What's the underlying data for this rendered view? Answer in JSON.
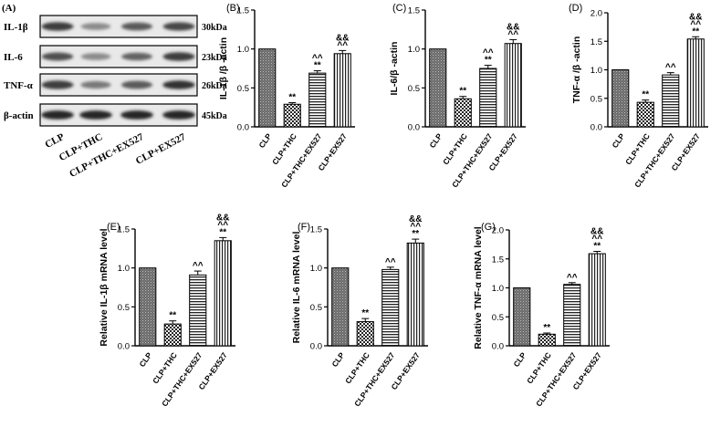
{
  "panel_labels": {
    "a": "(A)",
    "b": "(B)",
    "c": "(C)",
    "d": "(D)",
    "e": "(E)",
    "f": "(F)",
    "g": "(G)"
  },
  "blot": {
    "rows": [
      {
        "protein": "IL-1β",
        "size": "30kDa"
      },
      {
        "protein": "IL-6",
        "size": "23kDa"
      },
      {
        "protein": "TNF-α",
        "size": "26kDa"
      },
      {
        "protein": "β-actin",
        "size": "45kDa"
      }
    ],
    "lanes": [
      "CLP",
      "CLP+THC",
      "CLP+THC+EX527",
      "CLP+EX527"
    ],
    "intensities": [
      [
        0.85,
        0.45,
        0.7,
        0.8
      ],
      [
        0.75,
        0.45,
        0.65,
        0.85
      ],
      [
        0.85,
        0.55,
        0.7,
        0.9
      ],
      [
        0.95,
        0.95,
        0.95,
        0.95
      ]
    ]
  },
  "chart_data": [
    {
      "panel": "(B)",
      "type": "bar",
      "title": "",
      "xlabel": "",
      "ylabel": "IL-1β /β -actin",
      "categories": [
        "CLP",
        "CLP+THC",
        "CLP+THC+EX527",
        "CLP+EX527"
      ],
      "values": [
        1.0,
        0.29,
        0.69,
        0.94
      ],
      "errors": [
        0,
        0.02,
        0.03,
        0.04
      ],
      "annotations": [
        [],
        [
          "**"
        ],
        [
          "**",
          "^^"
        ],
        [
          "^^",
          "&&"
        ]
      ],
      "ylim": [
        0,
        1.5
      ],
      "yticks": [
        "0.0",
        "0.5",
        "1.0",
        "1.5"
      ]
    },
    {
      "panel": "(C)",
      "type": "bar",
      "title": "",
      "xlabel": "",
      "ylabel": "IL-6/β -actin",
      "categories": [
        "CLP",
        "CLP+THC",
        "CLP+THC+EX527",
        "CLP+EX527"
      ],
      "values": [
        1.0,
        0.36,
        0.75,
        1.07
      ],
      "errors": [
        0,
        0.03,
        0.04,
        0.05
      ],
      "annotations": [
        [],
        [
          "**"
        ],
        [
          "**",
          "^^"
        ],
        [
          "^^",
          "&&"
        ]
      ],
      "ylim": [
        0,
        1.5
      ],
      "yticks": [
        "0.0",
        "0.5",
        "1.0",
        "1.5"
      ]
    },
    {
      "panel": "(D)",
      "type": "bar",
      "title": "",
      "xlabel": "",
      "ylabel": "TNF-α /β -actin",
      "categories": [
        "CLP",
        "CLP+THC",
        "CLP+THC+EX527",
        "CLP+EX527"
      ],
      "values": [
        1.0,
        0.43,
        0.91,
        1.54
      ],
      "errors": [
        0,
        0.04,
        0.04,
        0.04
      ],
      "annotations": [
        [],
        [
          "**"
        ],
        [
          "^^"
        ],
        [
          "**",
          "^^",
          "&&"
        ]
      ],
      "ylim": [
        0,
        2.0
      ],
      "yticks": [
        "0.0",
        "0.5",
        "1.0",
        "1.5",
        "2.0"
      ]
    },
    {
      "panel": "(E)",
      "type": "bar",
      "title": "",
      "xlabel": "",
      "ylabel": "Relative IL-1β  mRNA level",
      "categories": [
        "CLP",
        "CLP+THC",
        "CLP+THC+EX527",
        "CLP+EX527"
      ],
      "values": [
        1.0,
        0.28,
        0.91,
        1.35
      ],
      "errors": [
        0,
        0.04,
        0.05,
        0.04
      ],
      "annotations": [
        [],
        [
          "**"
        ],
        [
          "^^"
        ],
        [
          "**",
          "^^",
          "&&"
        ]
      ],
      "ylim": [
        0,
        1.5
      ],
      "yticks": [
        "0.0",
        "0.5",
        "1.0",
        "1.5"
      ]
    },
    {
      "panel": "(F)",
      "type": "bar",
      "title": "",
      "xlabel": "",
      "ylabel": "Relative IL-6 mRNA level",
      "categories": [
        "CLP",
        "CLP+THC",
        "CLP+THC+EX527",
        "CLP+EX527"
      ],
      "values": [
        1.0,
        0.31,
        0.98,
        1.32
      ],
      "errors": [
        0,
        0.04,
        0.03,
        0.05
      ],
      "annotations": [
        [],
        [
          "**"
        ],
        [
          "^^"
        ],
        [
          "**",
          "^^",
          "&&"
        ]
      ],
      "ylim": [
        0,
        1.5
      ],
      "yticks": [
        "0.0",
        "0.5",
        "1.0",
        "1.5"
      ]
    },
    {
      "panel": "(G)",
      "type": "bar",
      "title": "",
      "xlabel": "",
      "ylabel": "Relative TNF-α  mRNA level",
      "categories": [
        "CLP",
        "CLP+THC",
        "CLP+THC+EX527",
        "CLP+EX527"
      ],
      "values": [
        1.0,
        0.2,
        1.06,
        1.59
      ],
      "errors": [
        0,
        0.02,
        0.03,
        0.04
      ],
      "annotations": [
        [],
        [
          "**"
        ],
        [
          "^^"
        ],
        [
          "**",
          "^^",
          "&&"
        ]
      ],
      "ylim": [
        0,
        2.0
      ],
      "yticks": [
        "0.0",
        "0.5",
        "1.0",
        "1.5",
        "2.0"
      ]
    }
  ]
}
